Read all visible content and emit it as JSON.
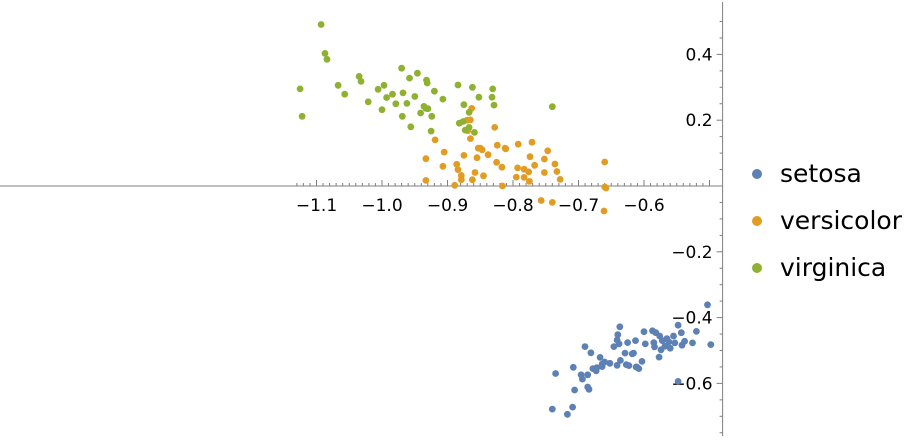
{
  "chart_data": {
    "type": "scatter",
    "title": "",
    "xlabel": "",
    "ylabel": "",
    "xlim": [
      -1.13,
      -0.48
    ],
    "ylim": [
      -0.77,
      0.55
    ],
    "grid": false,
    "legend_position": "right",
    "x_ticks": [
      {
        "value": -1.1,
        "label": "−1.1"
      },
      {
        "value": -1.0,
        "label": "−1.0"
      },
      {
        "value": -0.9,
        "label": "−0.9"
      },
      {
        "value": -0.8,
        "label": "−0.8"
      },
      {
        "value": -0.7,
        "label": "−0.7"
      },
      {
        "value": -0.6,
        "label": "−0.6"
      }
    ],
    "y_ticks": [
      {
        "value": 0.4,
        "label": "0.4"
      },
      {
        "value": 0.2,
        "label": "0.2"
      },
      {
        "value": -0.2,
        "label": "−0.2"
      },
      {
        "value": -0.4,
        "label": "−0.4"
      },
      {
        "value": -0.6,
        "label": "−0.6"
      }
    ],
    "series": [
      {
        "name": "setosa",
        "color": "#5e81b5",
        "points": [
          [
            -0.503,
            -0.361
          ],
          [
            -0.548,
            -0.423
          ],
          [
            -0.543,
            -0.446
          ],
          [
            -0.498,
            -0.482
          ],
          [
            -0.542,
            -0.484
          ],
          [
            -0.555,
            -0.456
          ],
          [
            -0.565,
            -0.464
          ],
          [
            -0.572,
            -0.47
          ],
          [
            -0.576,
            -0.456
          ],
          [
            -0.582,
            -0.446
          ],
          [
            -0.585,
            -0.476
          ],
          [
            -0.587,
            -0.44
          ],
          [
            -0.598,
            -0.48
          ],
          [
            -0.6,
            -0.443
          ],
          [
            -0.613,
            -0.47
          ],
          [
            -0.616,
            -0.508
          ],
          [
            -0.625,
            -0.476
          ],
          [
            -0.637,
            -0.428
          ],
          [
            -0.64,
            -0.452
          ],
          [
            -0.641,
            -0.468
          ],
          [
            -0.646,
            -0.488
          ],
          [
            -0.629,
            -0.508
          ],
          [
            -0.627,
            -0.543
          ],
          [
            -0.618,
            -0.51
          ],
          [
            -0.584,
            -0.489
          ],
          [
            -0.574,
            -0.498
          ],
          [
            -0.568,
            -0.487
          ],
          [
            -0.562,
            -0.474
          ],
          [
            -0.56,
            -0.493
          ],
          [
            -0.553,
            -0.477
          ],
          [
            -0.538,
            -0.472
          ],
          [
            -0.526,
            -0.477
          ],
          [
            -0.52,
            -0.442
          ],
          [
            -0.603,
            -0.533
          ],
          [
            -0.611,
            -0.55
          ],
          [
            -0.608,
            -0.555
          ],
          [
            -0.638,
            -0.48
          ],
          [
            -0.652,
            -0.539
          ],
          [
            -0.66,
            -0.535
          ],
          [
            -0.664,
            -0.549
          ],
          [
            -0.667,
            -0.521
          ],
          [
            -0.672,
            -0.552
          ],
          [
            -0.678,
            -0.555
          ],
          [
            -0.681,
            -0.507
          ],
          [
            -0.69,
            -0.488
          ],
          [
            -0.686,
            -0.574
          ],
          [
            -0.694,
            -0.587
          ],
          [
            -0.696,
            -0.574
          ],
          [
            -0.708,
            -0.551
          ],
          [
            -0.709,
            -0.672
          ],
          [
            -0.664,
            -0.541
          ],
          [
            -0.641,
            -0.545
          ],
          [
            -0.623,
            -0.546
          ],
          [
            -0.612,
            -0.55
          ],
          [
            -0.636,
            -0.53
          ],
          [
            -0.577,
            -0.52
          ],
          [
            -0.548,
            -0.594
          ],
          [
            -0.673,
            -0.562
          ],
          [
            -0.684,
            -0.618
          ],
          [
            -0.686,
            -0.611
          ],
          [
            -0.74,
            -0.678
          ],
          [
            -0.706,
            -0.62
          ],
          [
            -0.717,
            -0.694
          ],
          [
            -0.735,
            -0.57
          ]
        ]
      },
      {
        "name": "versicolor",
        "color": "#e19c24",
        "points": [
          [
            -0.66,
            0.073
          ],
          [
            -0.66,
            -0.003
          ],
          [
            -0.658,
            -0.006
          ],
          [
            -0.661,
            -0.076
          ],
          [
            -0.728,
            0.02
          ],
          [
            -0.733,
            0.044
          ],
          [
            -0.736,
            0.067
          ],
          [
            -0.74,
            -0.05
          ],
          [
            -0.752,
            0.082
          ],
          [
            -0.752,
            0.041
          ],
          [
            -0.757,
            -0.044
          ],
          [
            -0.747,
            0.107
          ],
          [
            -0.771,
            0.133
          ],
          [
            -0.767,
            0.063
          ],
          [
            -0.774,
            0.089
          ],
          [
            -0.776,
            0.043
          ],
          [
            -0.775,
            0.014
          ],
          [
            -0.783,
            0.026
          ],
          [
            -0.783,
            0.051
          ],
          [
            -0.792,
            0.127
          ],
          [
            -0.793,
            0.055
          ],
          [
            -0.795,
            0.027
          ],
          [
            -0.812,
            0.115
          ],
          [
            -0.811,
            0.113
          ],
          [
            -0.817,
            0.057
          ],
          [
            -0.816,
            0.0
          ],
          [
            -0.825,
            0.072
          ],
          [
            -0.824,
            0.124
          ],
          [
            -0.828,
            0.178
          ],
          [
            -0.838,
            0.095
          ],
          [
            -0.845,
            0.031
          ],
          [
            -0.847,
            0.11
          ],
          [
            -0.853,
            0.115
          ],
          [
            -0.855,
            0.086
          ],
          [
            -0.858,
            0.041
          ],
          [
            -0.862,
            0.019
          ],
          [
            -0.863,
            0.236
          ],
          [
            -0.865,
            0.144
          ],
          [
            -0.865,
            0.201
          ],
          [
            -0.869,
            0.168
          ],
          [
            -0.875,
            0.093
          ],
          [
            -0.879,
            0.032
          ],
          [
            -0.879,
            0.019
          ],
          [
            -0.884,
            0.05
          ],
          [
            -0.886,
            0.066
          ],
          [
            -0.889,
            0.002
          ],
          [
            -0.919,
            0.14
          ],
          [
            -0.905,
            0.103
          ],
          [
            -0.907,
            0.06
          ],
          [
            -0.933,
            0.083
          ],
          [
            -0.933,
            0.017
          ],
          [
            -0.85,
            0.115
          ],
          [
            -0.87,
            0.2
          ]
        ]
      },
      {
        "name": "virginica",
        "color": "#8fb131",
        "points": [
          [
            -1.093,
            0.491
          ],
          [
            -1.087,
            0.403
          ],
          [
            -1.084,
            0.385
          ],
          [
            -1.125,
            0.295
          ],
          [
            -1.122,
            0.212
          ],
          [
            -1.067,
            0.306
          ],
          [
            -1.057,
            0.279
          ],
          [
            -1.035,
            0.333
          ],
          [
            -1.032,
            0.318
          ],
          [
            -1.021,
            0.256
          ],
          [
            -1.006,
            0.294
          ],
          [
            -1.0,
            0.232
          ],
          [
            -0.997,
            0.306
          ],
          [
            -0.993,
            0.269
          ],
          [
            -0.984,
            0.279
          ],
          [
            -0.979,
            0.25
          ],
          [
            -0.97,
            0.358
          ],
          [
            -0.968,
            0.283
          ],
          [
            -0.969,
            0.212
          ],
          [
            -0.962,
            0.251
          ],
          [
            -0.958,
            0.328
          ],
          [
            -0.956,
            0.18
          ],
          [
            -0.95,
            0.272
          ],
          [
            -0.946,
            0.343
          ],
          [
            -0.941,
            0.222
          ],
          [
            -0.936,
            0.242
          ],
          [
            -0.932,
            0.322
          ],
          [
            -0.931,
            0.313
          ],
          [
            -0.933,
            0.236
          ],
          [
            -0.93,
            0.235
          ],
          [
            -0.925,
            0.167
          ],
          [
            -0.924,
            0.212
          ],
          [
            -0.92,
            0.288
          ],
          [
            -0.907,
            0.264
          ],
          [
            -0.884,
            0.307
          ],
          [
            -0.882,
            0.191
          ],
          [
            -0.876,
            0.196
          ],
          [
            -0.875,
            0.247
          ],
          [
            -0.873,
            0.17
          ],
          [
            -0.867,
            0.178
          ],
          [
            -0.867,
            0.224
          ],
          [
            -0.862,
            0.3
          ],
          [
            -0.859,
            0.163
          ],
          [
            -0.852,
            0.27
          ],
          [
            -0.831,
            0.295
          ],
          [
            -0.832,
            0.27
          ],
          [
            -0.829,
            0.246
          ],
          [
            -0.74,
            0.241
          ]
        ]
      }
    ]
  }
}
